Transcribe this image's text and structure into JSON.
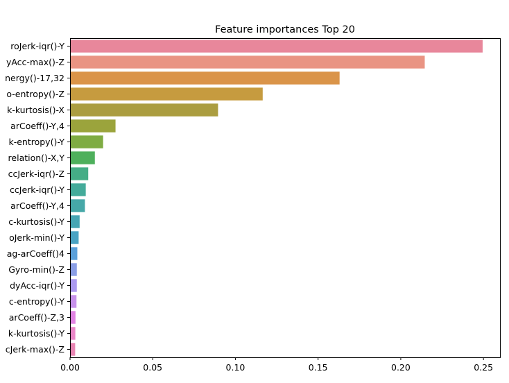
{
  "chart_data": {
    "type": "bar",
    "orientation": "horizontal",
    "title": "Feature importances Top 20",
    "xlabel": "",
    "ylabel": "",
    "xlim": [
      0,
      0.26
    ],
    "xticks": [
      0.0,
      0.05,
      0.1,
      0.15,
      0.2,
      0.25
    ],
    "xtick_labels": [
      "0.00",
      "0.05",
      "0.10",
      "0.15",
      "0.20",
      "0.25"
    ],
    "grid": false,
    "categories": [
      "roJerk-iqr()-Y",
      "yAcc-max()-Z",
      "nergy()-17,32",
      "o-entropy()-Z",
      "k-kurtosis()-X",
      "arCoeff()-Y,4",
      "k-entropy()-Y",
      "relation()-X,Y",
      "ccJerk-iqr()-Z",
      "ccJerk-iqr()-Y",
      "arCoeff()-Y,4",
      "c-kurtosis()-Y",
      "oJerk-min()-Y",
      "ag-arCoeff()4",
      "Gyro-min()-Z",
      "dyAcc-iqr()-Y",
      "c-entropy()-Y",
      "arCoeff()-Z,3",
      "k-kurtosis()-Y",
      "cJerk-max()-Z"
    ],
    "values": [
      0.2495,
      0.2145,
      0.163,
      0.1165,
      0.0895,
      0.0275,
      0.02,
      0.015,
      0.011,
      0.0095,
      0.009,
      0.0058,
      0.0052,
      0.0044,
      0.0041,
      0.0041,
      0.0039,
      0.0033,
      0.0032,
      0.0031
    ],
    "colors": [
      "#e8879b",
      "#e99483",
      "#da9449",
      "#c69b3f",
      "#ab9d40",
      "#9ba43c",
      "#7fac43",
      "#4eb05c",
      "#45ad86",
      "#44ab9a",
      "#46a8a8",
      "#47a6b4",
      "#4aa3c3",
      "#5ba0da",
      "#8b9fe6",
      "#ab9af0",
      "#c792eb",
      "#e083e2",
      "#ea87c8",
      "#e886b3"
    ]
  }
}
